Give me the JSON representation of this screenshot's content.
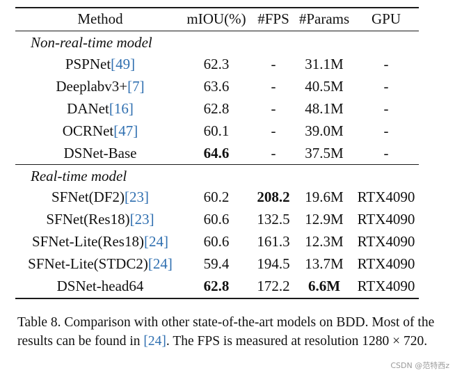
{
  "table": {
    "headers": {
      "method": "Method",
      "miou": "mIOU(%)",
      "fps": "#FPS",
      "params": "#Params",
      "gpu": "GPU"
    },
    "sections": [
      {
        "title": "Non-real-time model",
        "rows": [
          {
            "method": "PSPNet",
            "ref": "[49]",
            "miou": "62.3",
            "fps": "-",
            "params": "31.1M",
            "gpu": "-"
          },
          {
            "method": "Deeplabv3+",
            "ref": "[7]",
            "miou": "63.6",
            "fps": "-",
            "params": "40.5M",
            "gpu": "-"
          },
          {
            "method": "DANet",
            "ref": "[16]",
            "miou": "62.8",
            "fps": "-",
            "params": "48.1M",
            "gpu": "-"
          },
          {
            "method": "OCRNet",
            "ref": "[47]",
            "miou": "60.1",
            "fps": "-",
            "params": "39.0M",
            "gpu": "-"
          },
          {
            "method": "DSNet-Base",
            "ref": "",
            "miou": "64.6",
            "fps": "-",
            "params": "37.5M",
            "gpu": "-"
          }
        ]
      },
      {
        "title": "Real-time model",
        "rows": [
          {
            "method": "SFNet(DF2)",
            "ref": "[23]",
            "miou": "60.2",
            "fps": "208.2",
            "params": "19.6M",
            "gpu": "RTX4090"
          },
          {
            "method": "SFNet(Res18)",
            "ref": "[23]",
            "miou": "60.6",
            "fps": "132.5",
            "params": "12.9M",
            "gpu": "RTX4090"
          },
          {
            "method": "SFNet-Lite(Res18)",
            "ref": "[24]",
            "miou": "60.6",
            "fps": "161.3",
            "params": "12.3M",
            "gpu": "RTX4090"
          },
          {
            "method": "SFNet-Lite(STDC2)",
            "ref": "[24]",
            "miou": "59.4",
            "fps": "194.5",
            "params": "13.7M",
            "gpu": "RTX4090"
          },
          {
            "method": "DSNet-head64",
            "ref": "",
            "miou": "62.8",
            "fps": "172.2",
            "params": "6.6M",
            "gpu": "RTX4090"
          }
        ]
      }
    ]
  },
  "caption": {
    "part1": "Table 8. Comparison with other state-of-the-art models on BDD. Most of the results can be found in ",
    "ref": "[24]",
    "part2": ". The FPS is measured at resolution 1280 × 720."
  },
  "watermark": "CSDN @范特西z"
}
